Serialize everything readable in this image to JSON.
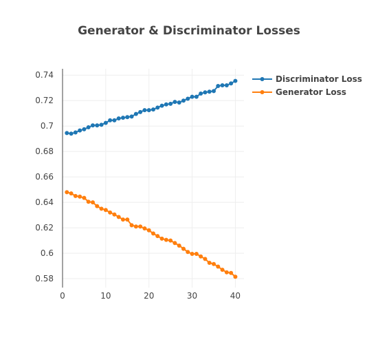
{
  "chart_data": {
    "type": "line",
    "title": "Generator & Discriminator Losses",
    "xlabel": "",
    "ylabel": "",
    "xlim": [
      0,
      42
    ],
    "ylim": [
      0.573,
      0.745
    ],
    "x_ticks": [
      0,
      10,
      20,
      30,
      40
    ],
    "y_ticks": [
      0.58,
      0.6,
      0.62,
      0.64,
      0.66,
      0.68,
      0.7,
      0.72,
      0.74
    ],
    "y_tick_labels": [
      "0.58",
      "0.6",
      "0.62",
      "0.64",
      "0.66",
      "0.68",
      "0.7",
      "0.72",
      "0.74"
    ],
    "grid": true,
    "legend_position": "top-right",
    "x": [
      1,
      2,
      3,
      4,
      5,
      6,
      7,
      8,
      9,
      10,
      11,
      12,
      13,
      14,
      15,
      16,
      17,
      18,
      19,
      20,
      21,
      22,
      23,
      24,
      25,
      26,
      27,
      28,
      29,
      30,
      31,
      32,
      33,
      34,
      35,
      36,
      37,
      38,
      39,
      40
    ],
    "series": [
      {
        "name": "Discriminator Loss",
        "color": "#1f77b4",
        "values": [
          0.6945,
          0.694,
          0.695,
          0.6965,
          0.6975,
          0.699,
          0.7005,
          0.7005,
          0.701,
          0.7025,
          0.7045,
          0.7045,
          0.706,
          0.7065,
          0.707,
          0.7075,
          0.7095,
          0.711,
          0.7125,
          0.7125,
          0.713,
          0.7145,
          0.716,
          0.717,
          0.7175,
          0.719,
          0.7185,
          0.72,
          0.7215,
          0.723,
          0.723,
          0.7255,
          0.7265,
          0.727,
          0.7275,
          0.7315,
          0.732,
          0.732,
          0.7335,
          0.7355
        ]
      },
      {
        "name": "Generator Loss",
        "color": "#ff7f0e",
        "values": [
          0.648,
          0.647,
          0.645,
          0.6445,
          0.6435,
          0.6405,
          0.64,
          0.637,
          0.635,
          0.634,
          0.632,
          0.6305,
          0.6285,
          0.6265,
          0.6265,
          0.622,
          0.621,
          0.621,
          0.6195,
          0.618,
          0.6155,
          0.6135,
          0.6115,
          0.6105,
          0.61,
          0.608,
          0.606,
          0.6035,
          0.601,
          0.5995,
          0.5995,
          0.5975,
          0.5955,
          0.5925,
          0.5915,
          0.5895,
          0.587,
          0.585,
          0.5845,
          0.5815
        ]
      }
    ]
  }
}
